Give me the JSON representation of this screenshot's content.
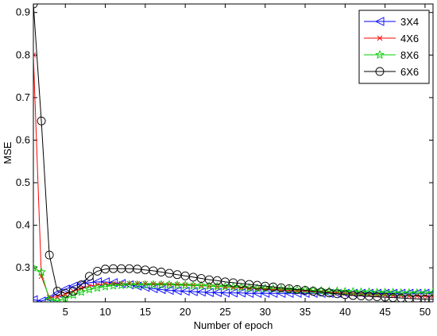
{
  "chart_data": {
    "type": "line",
    "title": "",
    "xlabel": "Number of epoch",
    "ylabel": "MSE",
    "xlim": [
      1,
      51
    ],
    "ylim": [
      0.22,
      0.92
    ],
    "xticks": [
      5,
      10,
      15,
      20,
      25,
      30,
      35,
      40,
      45,
      50
    ],
    "xtick_labels": [
      "5",
      "10",
      "15",
      "20",
      "25",
      "30",
      "35",
      "40",
      "45",
      "50"
    ],
    "yticks": [
      0.3,
      0.4,
      0.5,
      0.6,
      0.7,
      0.8,
      0.9
    ],
    "ytick_labels": [
      "0.3",
      "0.4",
      "0.5",
      "0.6",
      "0.7",
      "0.8",
      "0.9"
    ],
    "grid": false,
    "legend_position": "top-right",
    "x": [
      1,
      2,
      3,
      4,
      5,
      6,
      7,
      8,
      9,
      10,
      11,
      12,
      13,
      14,
      15,
      16,
      17,
      18,
      19,
      20,
      21,
      22,
      23,
      24,
      25,
      26,
      27,
      28,
      29,
      30,
      31,
      32,
      33,
      34,
      35,
      36,
      37,
      38,
      39,
      40,
      41,
      42,
      43,
      44,
      45,
      46,
      47,
      48,
      49,
      50,
      51
    ],
    "series": [
      {
        "name": "3X4",
        "color": "#0000ff",
        "marker": "triangle-left",
        "values": [
          0.225,
          0.222,
          0.228,
          0.24,
          0.25,
          0.257,
          0.262,
          0.265,
          0.267,
          0.267,
          0.265,
          0.263,
          0.26,
          0.257,
          0.254,
          0.251,
          0.249,
          0.247,
          0.246,
          0.245,
          0.244,
          0.243,
          0.242,
          0.242,
          0.241,
          0.241,
          0.241,
          0.24,
          0.24,
          0.24,
          0.24,
          0.24,
          0.24,
          0.24,
          0.24,
          0.24,
          0.24,
          0.24,
          0.24,
          0.24,
          0.24,
          0.24,
          0.24,
          0.24,
          0.24,
          0.24,
          0.24,
          0.24,
          0.24,
          0.24,
          0.24
        ]
      },
      {
        "name": "4X6",
        "color": "#ff0000",
        "marker": "x",
        "values": [
          0.8,
          0.28,
          0.23,
          0.232,
          0.238,
          0.245,
          0.252,
          0.257,
          0.26,
          0.262,
          0.263,
          0.263,
          0.263,
          0.263,
          0.263,
          0.262,
          0.262,
          0.261,
          0.261,
          0.26,
          0.259,
          0.258,
          0.257,
          0.256,
          0.255,
          0.254,
          0.253,
          0.252,
          0.251,
          0.25,
          0.249,
          0.248,
          0.247,
          0.246,
          0.245,
          0.244,
          0.243,
          0.242,
          0.241,
          0.24,
          0.239,
          0.238,
          0.237,
          0.236,
          0.236,
          0.235,
          0.235,
          0.234,
          0.234,
          0.234,
          0.234
        ]
      },
      {
        "name": "8X6",
        "color": "#00cc00",
        "marker": "star",
        "values": [
          0.3,
          0.29,
          0.225,
          0.222,
          0.228,
          0.236,
          0.243,
          0.249,
          0.253,
          0.256,
          0.258,
          0.259,
          0.26,
          0.26,
          0.26,
          0.26,
          0.26,
          0.26,
          0.259,
          0.259,
          0.258,
          0.258,
          0.257,
          0.256,
          0.256,
          0.255,
          0.254,
          0.253,
          0.252,
          0.252,
          0.251,
          0.25,
          0.249,
          0.248,
          0.248,
          0.247,
          0.246,
          0.245,
          0.245,
          0.244,
          0.244,
          0.243,
          0.243,
          0.242,
          0.242,
          0.242,
          0.241,
          0.241,
          0.241,
          0.241,
          0.241
        ]
      },
      {
        "name": "6X6",
        "color": "#000000",
        "marker": "circle",
        "values": [
          0.92,
          0.645,
          0.33,
          0.245,
          0.24,
          0.245,
          0.26,
          0.28,
          0.292,
          0.297,
          0.298,
          0.298,
          0.298,
          0.297,
          0.295,
          0.293,
          0.29,
          0.287,
          0.284,
          0.281,
          0.278,
          0.275,
          0.272,
          0.27,
          0.267,
          0.265,
          0.263,
          0.261,
          0.259,
          0.257,
          0.255,
          0.253,
          0.251,
          0.249,
          0.247,
          0.245,
          0.243,
          0.241,
          0.239,
          0.237,
          0.235,
          0.234,
          0.233,
          0.232,
          0.231,
          0.23,
          0.229,
          0.228,
          0.227,
          0.226,
          0.226
        ]
      }
    ]
  }
}
